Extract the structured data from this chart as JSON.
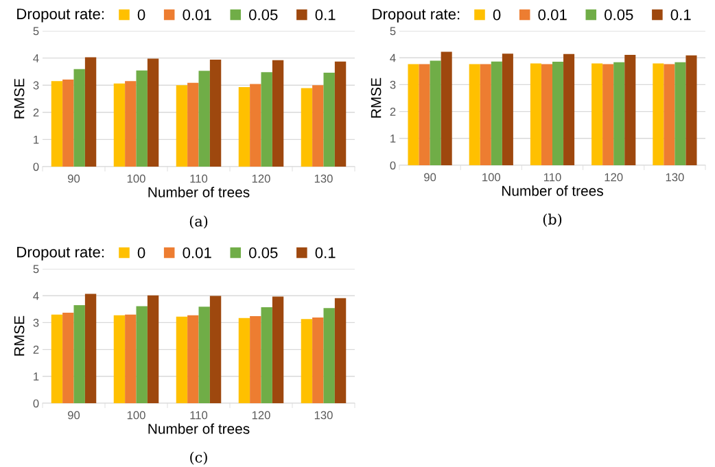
{
  "chart_data": [
    {
      "type": "bar",
      "xlabel": "Number of trees",
      "ylabel": "RMSE",
      "legend_title": "Dropout rate:",
      "categories": [
        "90",
        "100",
        "110",
        "120",
        "130"
      ],
      "ylim": [
        0,
        5
      ],
      "yticks": [
        0,
        1,
        2,
        3,
        4,
        5
      ],
      "grid": "y",
      "legend": "top",
      "annotations": [
        "(a)"
      ],
      "series": [
        {
          "name": "0",
          "color": "#ffc000",
          "values": [
            3.15,
            3.06,
            3.0,
            2.93,
            2.89
          ]
        },
        {
          "name": "0.01",
          "color": "#ed7d31",
          "values": [
            3.21,
            3.15,
            3.09,
            3.04,
            3.0
          ]
        },
        {
          "name": "0.05",
          "color": "#70ad47",
          "values": [
            3.59,
            3.54,
            3.53,
            3.48,
            3.46
          ]
        },
        {
          "name": "0.1",
          "color": "#9e480e",
          "values": [
            4.03,
            3.98,
            3.94,
            3.92,
            3.87
          ]
        }
      ]
    },
    {
      "type": "bar",
      "xlabel": "Number of trees",
      "ylabel": "RMSE",
      "legend_title": "Dropout rate:",
      "categories": [
        "90",
        "100",
        "110",
        "120",
        "130"
      ],
      "ylim": [
        0,
        5
      ],
      "yticks": [
        0,
        1,
        2,
        3,
        4,
        5
      ],
      "grid": "y",
      "legend": "top",
      "annotations": [
        "(b)"
      ],
      "series": [
        {
          "name": "0",
          "color": "#ffc000",
          "values": [
            3.76,
            3.76,
            3.79,
            3.79,
            3.79
          ]
        },
        {
          "name": "0.01",
          "color": "#ed7d31",
          "values": [
            3.76,
            3.76,
            3.76,
            3.76,
            3.76
          ]
        },
        {
          "name": "0.05",
          "color": "#70ad47",
          "values": [
            3.89,
            3.86,
            3.85,
            3.83,
            3.83
          ]
        },
        {
          "name": "0.1",
          "color": "#9e480e",
          "values": [
            4.22,
            4.15,
            4.14,
            4.11,
            4.09
          ]
        }
      ]
    },
    {
      "type": "bar",
      "xlabel": "Number of trees",
      "ylabel": "RMSE",
      "legend_title": "Dropout rate:",
      "categories": [
        "90",
        "100",
        "110",
        "120",
        "130"
      ],
      "ylim": [
        0,
        5
      ],
      "yticks": [
        0,
        1,
        2,
        3,
        4,
        5
      ],
      "grid": "y",
      "legend": "top",
      "annotations": [
        "(c)"
      ],
      "series": [
        {
          "name": "0",
          "color": "#ffc000",
          "values": [
            3.3,
            3.27,
            3.22,
            3.17,
            3.13
          ]
        },
        {
          "name": "0.01",
          "color": "#ed7d31",
          "values": [
            3.37,
            3.3,
            3.27,
            3.24,
            3.19
          ]
        },
        {
          "name": "0.05",
          "color": "#70ad47",
          "values": [
            3.65,
            3.61,
            3.59,
            3.57,
            3.54
          ]
        },
        {
          "name": "0.1",
          "color": "#9e480e",
          "values": [
            4.07,
            4.01,
            3.99,
            3.97,
            3.91
          ]
        }
      ]
    }
  ]
}
